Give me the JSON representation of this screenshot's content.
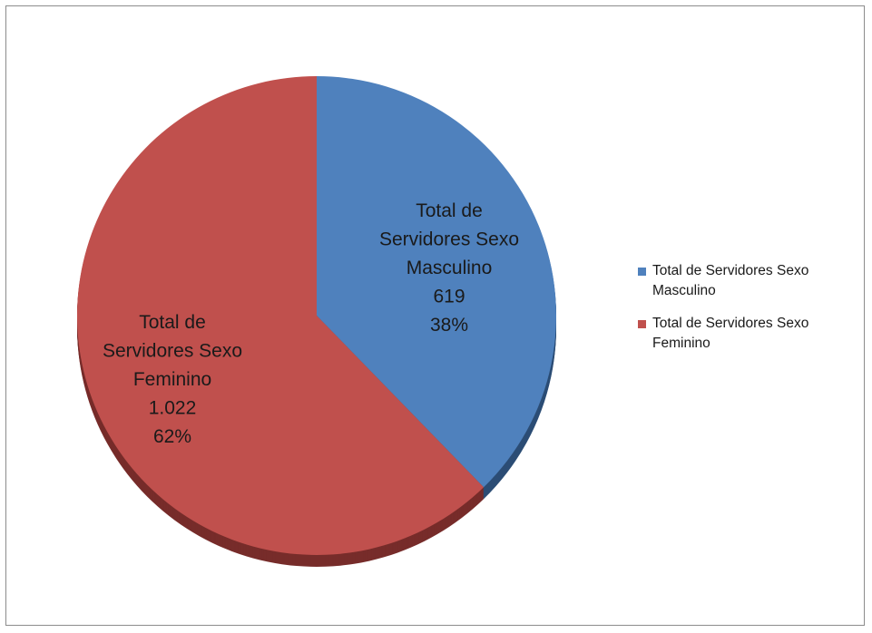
{
  "chart_data": {
    "type": "pie",
    "title": "",
    "slices": [
      {
        "name": "Total de Servidores Sexo Masculino",
        "value": 619,
        "value_label": "619",
        "percent_label": "38%",
        "label_lines": [
          "Total de",
          "Servidores Sexo",
          "Masculino",
          "619",
          "38%"
        ],
        "color": "#4f81bd",
        "side_color": "#2c4d75"
      },
      {
        "name": "Total de Servidores Sexo Feminino",
        "value": 1022,
        "value_label": "1.022",
        "percent_label": "62%",
        "label_lines": [
          "Total de",
          "Servidores Sexo",
          "Feminino",
          "1.022",
          "62%"
        ],
        "color": "#c0504d",
        "side_color": "#772c2a"
      }
    ],
    "legend": {
      "placement": "right",
      "entries": [
        {
          "line1": "Total de Servidores Sexo",
          "line2": "Masculino",
          "color": "#4f81bd"
        },
        {
          "line1": "Total de Servidores Sexo",
          "line2": "Feminino",
          "color": "#c0504d"
        }
      ]
    }
  }
}
